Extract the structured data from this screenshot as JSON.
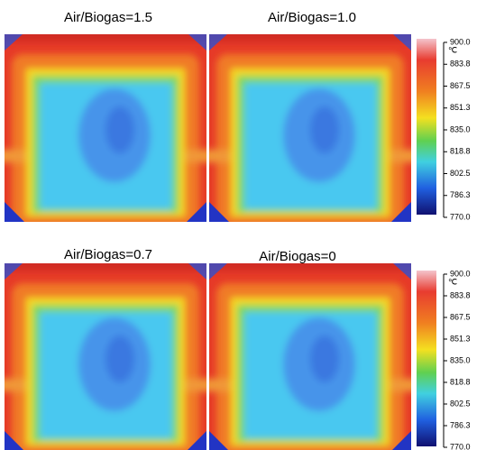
{
  "panels": [
    {
      "title": "Air/Biogas=1.5"
    },
    {
      "title": "Air/Biogas=1.0"
    },
    {
      "title": "Air/Biogas=0.7"
    },
    {
      "title": "Air/Biogas=0"
    }
  ],
  "colorbars": [
    {
      "unit": "℃",
      "ticks": [
        "900.0",
        "883.8",
        "867.5",
        "851.3",
        "835.0",
        "818.8",
        "802.5",
        "786.3",
        "770.0"
      ]
    },
    {
      "unit": "℃",
      "ticks": [
        "900.0",
        "883.8",
        "867.5",
        "851.3",
        "835.0",
        "818.8",
        "802.5",
        "786.3",
        "770.0"
      ]
    }
  ]
}
